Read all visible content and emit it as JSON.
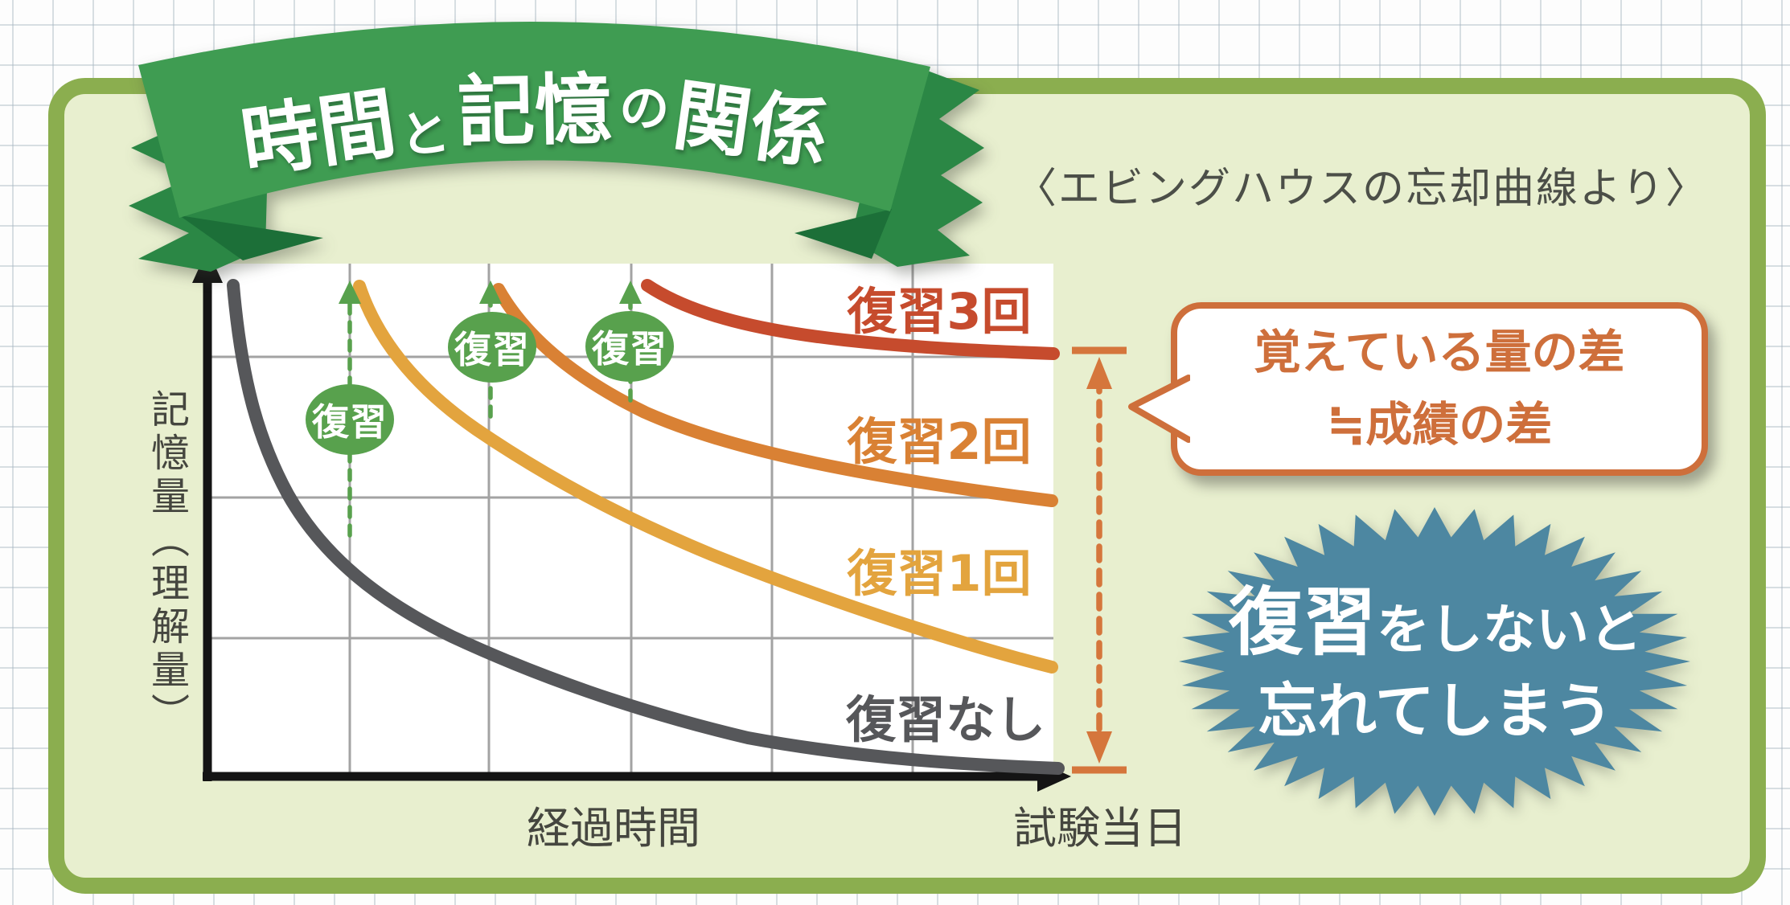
{
  "banner": {
    "title_full": "時間と記憶の関係",
    "title_parts": [
      {
        "text": "時間"
      },
      {
        "text": "と"
      },
      {
        "text": "記憶"
      },
      {
        "text": "の"
      },
      {
        "text": "関係"
      }
    ],
    "subtitle": "〈エビングハウスの忘却曲線より〉"
  },
  "chart": {
    "y_axis_label": "記憶量（理解量）",
    "x_axis_label": "経過時間",
    "x_axis_end_label": "試験当日",
    "review_badge_label": "復習",
    "curve_labels": {
      "three": "復習3回",
      "two": "復習2回",
      "one": "復習1回",
      "none": "復習なし"
    }
  },
  "callouts": {
    "bubble_line1": "覚えている量の差",
    "bubble_line2": "≒成績の差",
    "starburst_emphasis": "復習",
    "starburst_line1_rest": "をしないと",
    "starburst_line2": "忘れてしまう"
  },
  "colors": {
    "panel_fill": "#e8efcf",
    "panel_border": "#8bae4f",
    "ribbon_green": "#3f9c52",
    "ribbon_dark_green": "#2b8745",
    "ribbon_fold_green": "#1c6f38",
    "curve_none_gray": "#56575a",
    "curve_one_yellow": "#e3a43e",
    "curve_two_orange": "#d98134",
    "curve_three_red": "#c64b2d",
    "review_green": "#58a14d",
    "measure_orange": "#d5763c",
    "bubble_accent": "#ce6f3b",
    "starburst_blue": "#4d87a1"
  },
  "chart_data": {
    "type": "line",
    "title": "時間と記憶の関係",
    "subtitle": "エビングハウスの忘却曲線より",
    "xlabel": "経過時間",
    "x_axis_end_label": "試験当日",
    "ylabel": "記憶量（理解量）",
    "x_units": "経過時間の目盛り 0〜6（6 = 試験当日）",
    "y_units": "記憶量（推定％、軸目盛りなし）",
    "grid": true,
    "legend_position": "curve-end labels inside plot",
    "review_events_x": [
      1,
      2,
      3
    ],
    "series": [
      {
        "name": "復習なし",
        "color": "#56575a",
        "x": [
          0.2,
          1,
          2,
          3,
          4,
          5,
          6
        ],
        "y": [
          96,
          45,
          27,
          15,
          7,
          3,
          1
        ]
      },
      {
        "name": "復習1回",
        "color": "#e3a43e",
        "x": [
          1,
          2,
          3,
          4,
          5,
          6
        ],
        "y": [
          97,
          69,
          51,
          38,
          28,
          21
        ]
      },
      {
        "name": "復習2回",
        "color": "#d98134",
        "x": [
          2,
          3,
          4,
          5,
          6
        ],
        "y": [
          96,
          72,
          63,
          58,
          54
        ]
      },
      {
        "name": "復習3回",
        "color": "#c64b2d",
        "x": [
          3,
          4,
          5,
          6
        ],
        "y": [
          96,
          86,
          83,
          82
        ]
      }
    ],
    "annotations": [
      "復習",
      "覚えている量の差 ≒成績の差",
      "復習をしないと忘れてしまう"
    ]
  }
}
